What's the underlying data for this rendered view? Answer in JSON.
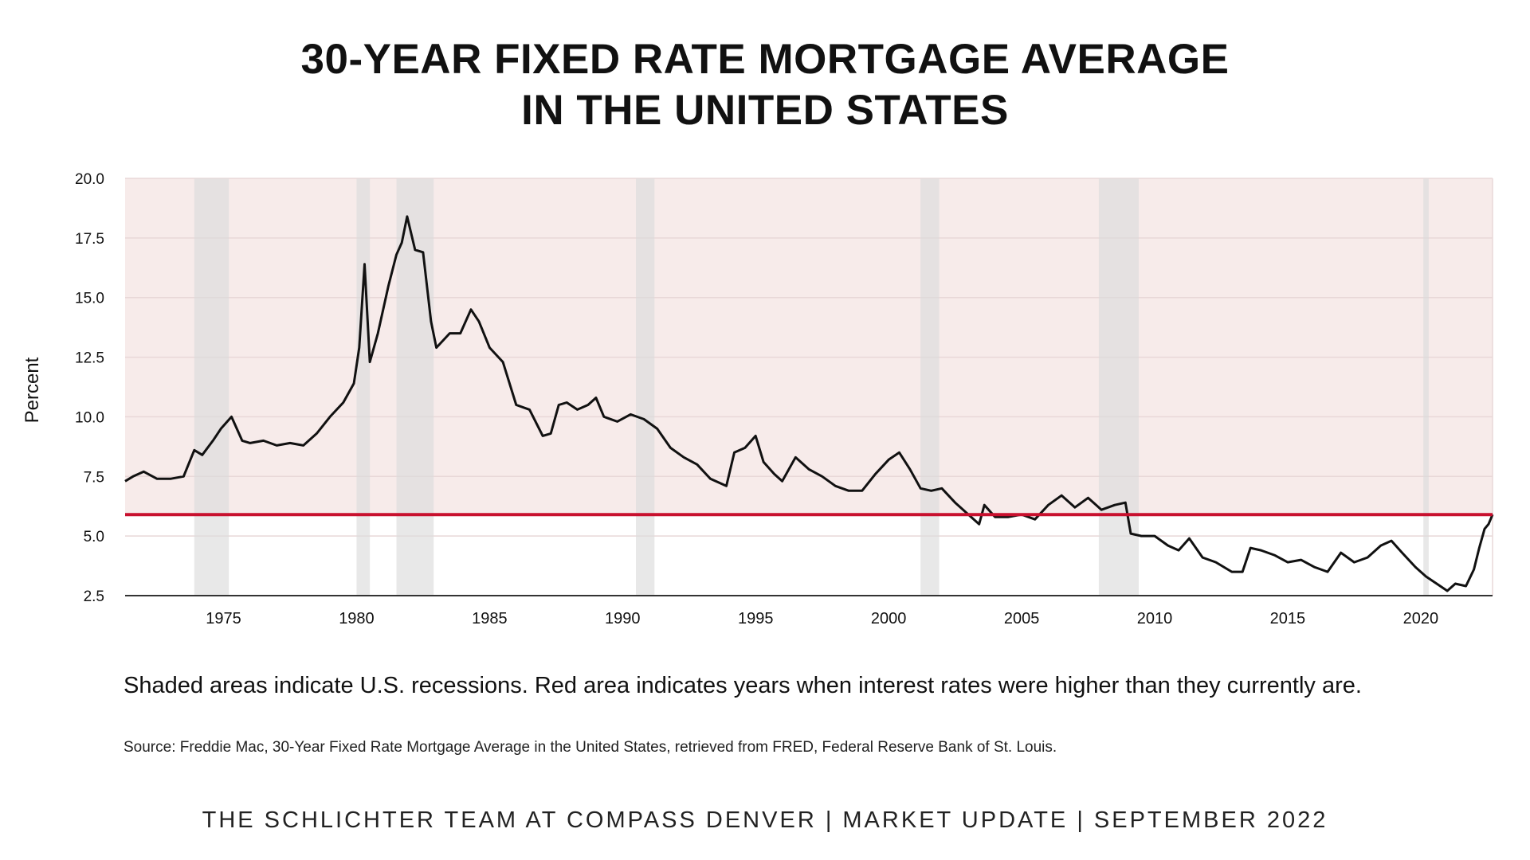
{
  "title_line1": "30-YEAR FIXED RATE MORTGAGE AVERAGE",
  "title_line2": "IN THE UNITED STATES",
  "note": "Shaded areas indicate U.S. recessions. Red area indicates years when interest rates were higher than they currently are.",
  "source": "Source: Freddie Mac, 30-Year Fixed Rate Mortgage Average in the United States, retrieved from FRED, Federal Reserve Bank of St. Louis.",
  "footer": "THE SCHLICHTER TEAM AT COMPASS DENVER | MARKET UPDATE | SEPTEMBER 2022",
  "colors": {
    "line": "#111111",
    "current_rate_line": "#c8102e",
    "higher_area": "#f7ebea",
    "recession_shade": "#dcdcdc",
    "grid": "#e8d8d8"
  },
  "chart_data": {
    "type": "line",
    "title": "30-YEAR FIXED RATE MORTGAGE AVERAGE IN THE UNITED STATES",
    "ylabel": "Percent",
    "xlabel": "",
    "xlim": [
      1971.3,
      2022.7
    ],
    "ylim": [
      2.5,
      20.0
    ],
    "y_ticks": [
      "20.0",
      "17.5",
      "15.0",
      "12.5",
      "10.0",
      "7.5",
      "5.0",
      "2.5"
    ],
    "x_ticks": [
      "1975",
      "1980",
      "1985",
      "1990",
      "1995",
      "2000",
      "2005",
      "2010",
      "2015",
      "2020"
    ],
    "current_rate": 5.9,
    "grid": true,
    "recessions": [
      [
        1973.9,
        1975.2
      ],
      [
        1980.0,
        1980.5
      ],
      [
        1981.5,
        1982.9
      ],
      [
        1990.5,
        1991.2
      ],
      [
        2001.2,
        2001.9
      ],
      [
        2007.9,
        2009.4
      ],
      [
        2020.1,
        2020.3
      ]
    ],
    "series": [
      {
        "name": "",
        "x": [
          1971.3,
          1971.6,
          1972.0,
          1972.5,
          1973.0,
          1973.5,
          1973.9,
          1974.2,
          1974.6,
          1974.9,
          1975.3,
          1975.7,
          1976.0,
          1976.5,
          1977.0,
          1977.5,
          1978.0,
          1978.5,
          1979.0,
          1979.5,
          1979.9,
          1980.1,
          1980.3,
          1980.5,
          1980.8,
          1981.2,
          1981.5,
          1981.7,
          1981.9,
          1982.2,
          1982.5,
          1982.8,
          1983.0,
          1983.5,
          1983.9,
          1984.3,
          1984.6,
          1985.0,
          1985.5,
          1986.0,
          1986.5,
          1987.0,
          1987.3,
          1987.6,
          1987.9,
          1988.3,
          1988.7,
          1989.0,
          1989.3,
          1989.8,
          1990.3,
          1990.8,
          1991.3,
          1991.8,
          1992.3,
          1992.8,
          1993.3,
          1993.9,
          1994.2,
          1994.6,
          1995.0,
          1995.3,
          1995.7,
          1996.0,
          1996.5,
          1997.0,
          1997.5,
          1998.0,
          1998.5,
          1999.0,
          1999.5,
          2000.0,
          2000.4,
          2000.8,
          2001.2,
          2001.6,
          2002.0,
          2002.5,
          2003.0,
          2003.4,
          2003.6,
          2004.0,
          2004.5,
          2005.0,
          2005.5,
          2006.0,
          2006.5,
          2007.0,
          2007.5,
          2008.0,
          2008.5,
          2008.9,
          2009.1,
          2009.5,
          2010.0,
          2010.5,
          2010.9,
          2011.3,
          2011.8,
          2012.3,
          2012.9,
          2013.3,
          2013.6,
          2014.0,
          2014.5,
          2015.0,
          2015.5,
          2016.0,
          2016.5,
          2017.0,
          2017.5,
          2018.0,
          2018.5,
          2018.9,
          2019.3,
          2019.8,
          2020.2,
          2020.6,
          2021.0,
          2021.3,
          2021.7,
          2022.0,
          2022.2,
          2022.4,
          2022.55,
          2022.7
        ],
        "values": [
          7.3,
          7.5,
          7.7,
          7.4,
          7.4,
          7.5,
          8.6,
          8.4,
          9.0,
          9.5,
          10.0,
          9.0,
          8.9,
          9.0,
          8.8,
          8.9,
          8.8,
          9.3,
          10.0,
          10.6,
          11.4,
          12.9,
          16.4,
          12.3,
          13.5,
          15.5,
          16.8,
          17.3,
          18.4,
          17.0,
          16.9,
          14.0,
          12.9,
          13.5,
          13.5,
          14.5,
          14.0,
          12.9,
          12.3,
          10.5,
          10.3,
          9.2,
          9.3,
          10.5,
          10.6,
          10.3,
          10.5,
          10.8,
          10.0,
          9.8,
          10.1,
          9.9,
          9.5,
          8.7,
          8.3,
          8.0,
          7.4,
          7.1,
          8.5,
          8.7,
          9.2,
          8.1,
          7.6,
          7.3,
          8.3,
          7.8,
          7.5,
          7.1,
          6.9,
          6.9,
          7.6,
          8.2,
          8.5,
          7.8,
          7.0,
          6.9,
          7.0,
          6.4,
          5.9,
          5.5,
          6.3,
          5.8,
          5.8,
          5.9,
          5.7,
          6.3,
          6.7,
          6.2,
          6.6,
          6.1,
          6.3,
          6.4,
          5.1,
          5.0,
          5.0,
          4.6,
          4.4,
          4.9,
          4.1,
          3.9,
          3.5,
          3.5,
          4.5,
          4.4,
          4.2,
          3.9,
          4.0,
          3.7,
          3.5,
          4.3,
          3.9,
          4.1,
          4.6,
          4.8,
          4.3,
          3.7,
          3.3,
          3.0,
          2.7,
          3.0,
          2.9,
          3.6,
          4.5,
          5.3,
          5.5,
          5.9
        ]
      }
    ]
  }
}
